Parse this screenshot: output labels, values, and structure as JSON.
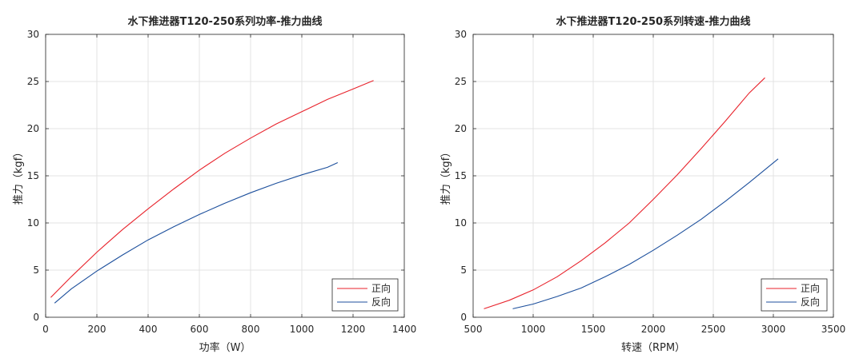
{
  "chart_data": [
    {
      "type": "line",
      "title": "水下推进器T120-250系列功率-推力曲线",
      "xlabel": "功率（W）",
      "ylabel": "推力（kgf）",
      "xlim": [
        0,
        1400
      ],
      "ylim": [
        0,
        30
      ],
      "xticks": [
        "0",
        "200",
        "400",
        "600",
        "800",
        "1000",
        "1200",
        "1400"
      ],
      "yticks": [
        "0",
        "5",
        "10",
        "15",
        "20",
        "25",
        "30"
      ],
      "grid": true,
      "legend_position": "bottom-right",
      "series": [
        {
          "name": "正向",
          "color": "#e8222b",
          "x": [
            20,
            100,
            200,
            300,
            400,
            500,
            600,
            700,
            800,
            900,
            1000,
            1100,
            1200,
            1280
          ],
          "y": [
            2.1,
            4.3,
            6.9,
            9.3,
            11.5,
            13.6,
            15.6,
            17.4,
            19.0,
            20.5,
            21.8,
            23.1,
            24.2,
            25.1
          ]
        },
        {
          "name": "反向",
          "color": "#1c4f9c",
          "x": [
            35,
            100,
            200,
            300,
            400,
            500,
            600,
            700,
            800,
            900,
            1000,
            1100,
            1140
          ],
          "y": [
            1.5,
            3.0,
            4.9,
            6.6,
            8.2,
            9.6,
            10.9,
            12.1,
            13.2,
            14.2,
            15.1,
            15.9,
            16.4
          ]
        }
      ]
    },
    {
      "type": "line",
      "title": "水下推进器T120-250系列转速-推力曲线",
      "xlabel": "转速（RPM）",
      "ylabel": "推力（kgf）",
      "xlim": [
        500,
        3500
      ],
      "ylim": [
        0,
        30
      ],
      "xticks": [
        "500",
        "1000",
        "1500",
        "2000",
        "2500",
        "3000",
        "3500"
      ],
      "yticks": [
        "0",
        "5",
        "10",
        "15",
        "20",
        "25",
        "30"
      ],
      "grid": true,
      "legend_position": "bottom-right",
      "series": [
        {
          "name": "正向",
          "color": "#e8222b",
          "x": [
            590,
            800,
            1000,
            1200,
            1400,
            1600,
            1800,
            2000,
            2200,
            2400,
            2600,
            2800,
            2930
          ],
          "y": [
            0.9,
            1.8,
            2.9,
            4.3,
            6.0,
            7.9,
            10.0,
            12.5,
            15.1,
            17.9,
            20.8,
            23.8,
            25.4
          ]
        },
        {
          "name": "反向",
          "color": "#1c4f9c",
          "x": [
            830,
            1000,
            1200,
            1400,
            1600,
            1800,
            2000,
            2200,
            2400,
            2600,
            2800,
            3040
          ],
          "y": [
            0.9,
            1.4,
            2.2,
            3.1,
            4.3,
            5.6,
            7.1,
            8.7,
            10.4,
            12.3,
            14.3,
            16.8
          ]
        }
      ]
    }
  ]
}
